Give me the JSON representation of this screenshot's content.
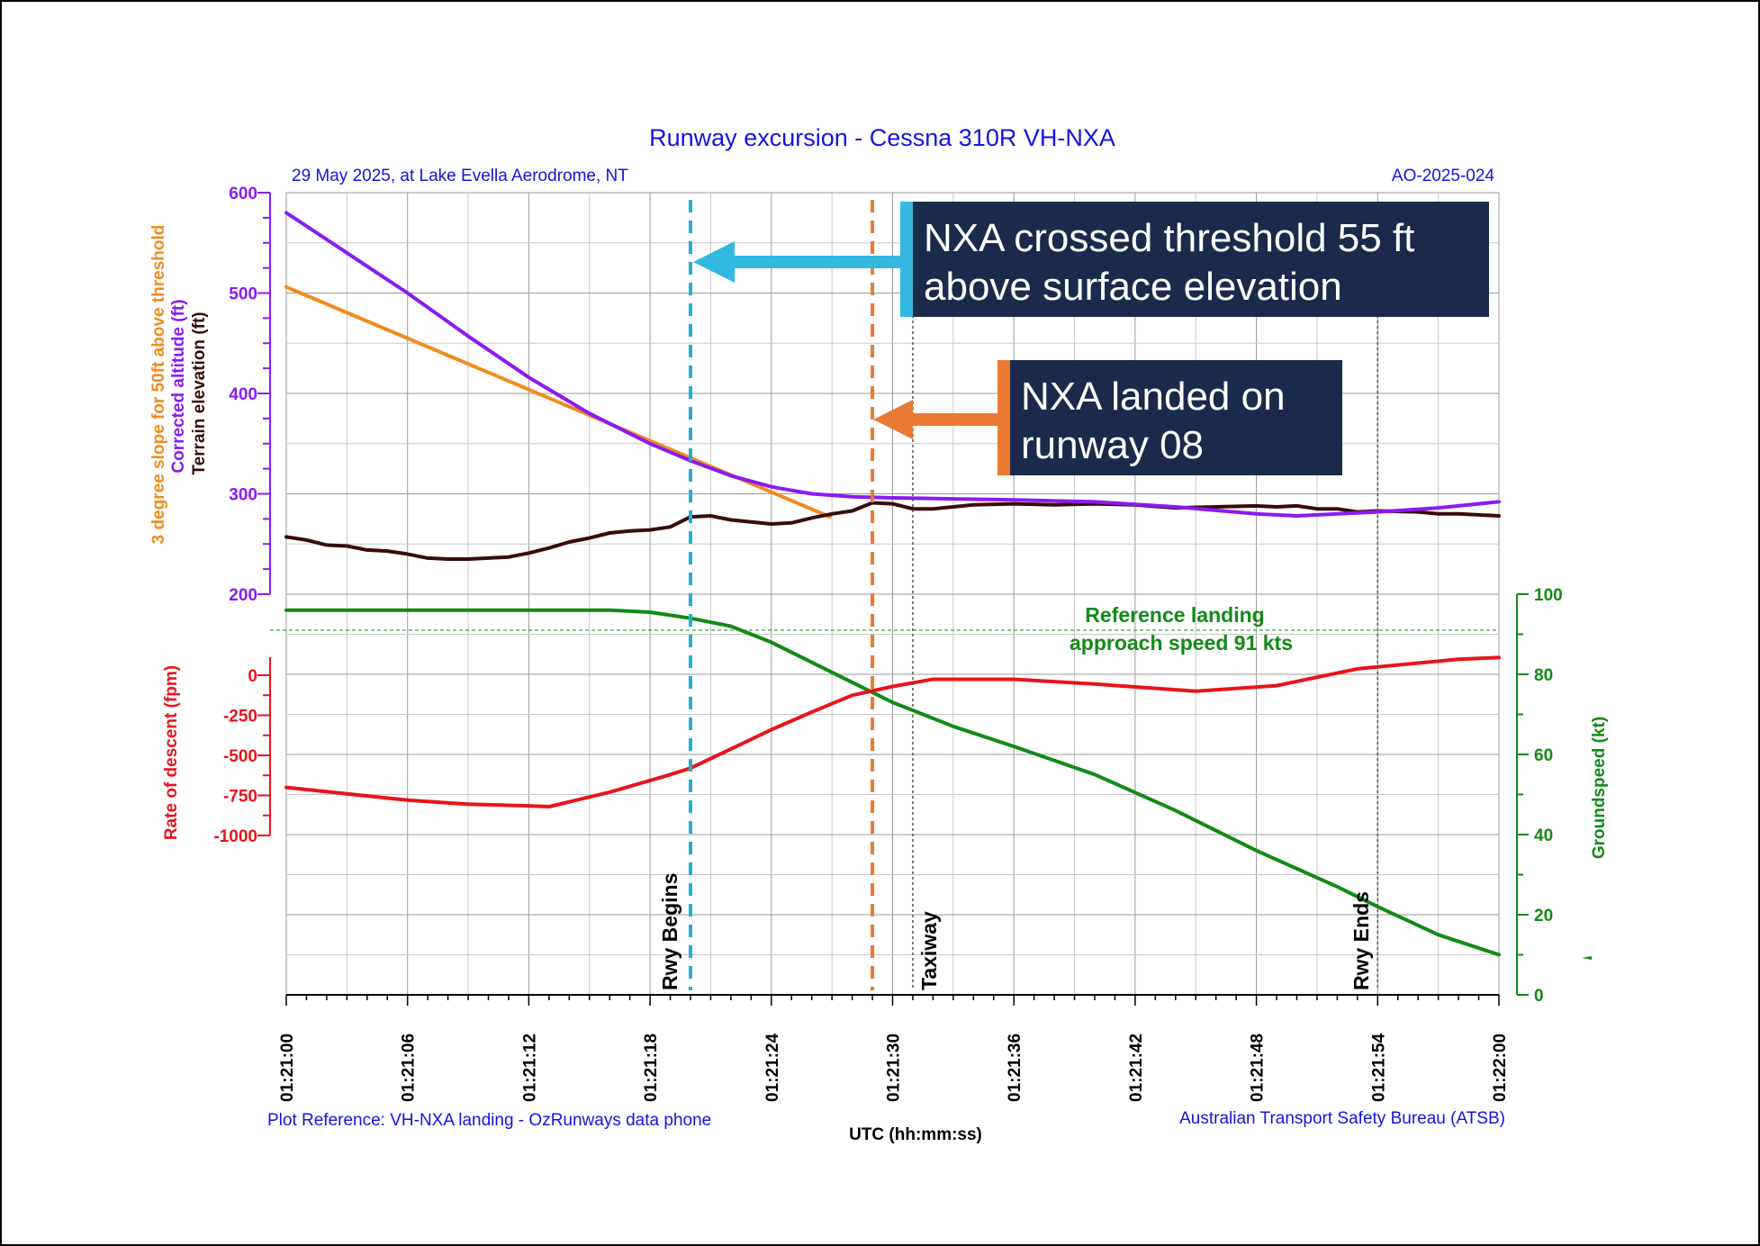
{
  "chart_data": {
    "type": "line",
    "title": "Runway excursion - Cessna 310R VH-NXA",
    "subtitle_left": "29 May 2025, at Lake Evella Aerodrome, NT",
    "subtitle_right": "AO-2025-024",
    "footer_left": "Plot Reference: VH-NXA landing - OzRunways data phone",
    "footer_right": "Australian Transport Safety Bureau (ATSB)",
    "xlabel": "UTC (hh:mm:ss)",
    "x_ticks": [
      "01:21:00",
      "01:21:06",
      "01:21:12",
      "01:21:18",
      "01:21:24",
      "01:21:30",
      "01:21:36",
      "01:21:42",
      "01:21:48",
      "01:21:54",
      "01:22:00"
    ],
    "xlim_seconds_after_0121": [
      0,
      60
    ],
    "upper_panel": {
      "ylabel_lines": [
        {
          "text": "3 degree slope for 50ft above threshold",
          "color": "#f28a1e"
        },
        {
          "text": "Corrected altitude (ft)",
          "color": "#8a1bf0"
        },
        {
          "text": "Terrain elevation (ft)",
          "color": "#3b0a0a"
        }
      ],
      "ylim": [
        200,
        600
      ],
      "y_ticks": [
        "200",
        "300",
        "400",
        "500",
        "600"
      ],
      "series": [
        {
          "name": "Corrected altitude (ft)",
          "color": "#8a1bf0",
          "x": [
            0,
            3,
            6,
            9,
            12,
            15,
            18,
            20,
            22,
            24,
            26,
            28,
            30,
            33,
            36,
            40,
            44,
            48,
            50,
            54,
            57,
            60
          ],
          "y": [
            580,
            540,
            500,
            457,
            416,
            380,
            350,
            333,
            318,
            307,
            300,
            297,
            296,
            295,
            294,
            292,
            287,
            280,
            278,
            282,
            286,
            292
          ]
        },
        {
          "name": "3 degree slope for 50ft above threshold",
          "color": "#f28a1e",
          "x": [
            0,
            26.9
          ],
          "y": [
            506,
            277
          ]
        },
        {
          "name": "Terrain elevation (ft)",
          "color": "#3b0a0a",
          "x": [
            0,
            1,
            2,
            3,
            4,
            5,
            6,
            7,
            8,
            9,
            10,
            11,
            12,
            13,
            14,
            15,
            16,
            17,
            18,
            19,
            20,
            21,
            22,
            23,
            24,
            25,
            26,
            27,
            28,
            29,
            30,
            31,
            32,
            33,
            34,
            36,
            38,
            40,
            42,
            44,
            46,
            48,
            49,
            50,
            51,
            52,
            53,
            54,
            56,
            57,
            58,
            60
          ],
          "y": [
            257,
            254,
            249,
            248,
            244,
            243,
            240,
            236,
            235,
            235,
            236,
            237,
            241,
            246,
            252,
            256,
            261,
            263,
            264,
            267,
            277,
            278,
            274,
            272,
            270,
            271,
            276,
            280,
            283,
            291,
            290,
            285,
            285,
            287,
            289,
            290,
            289,
            290,
            289,
            286,
            287,
            288,
            287,
            288,
            285,
            285,
            282,
            283,
            282,
            280,
            280,
            278
          ]
        }
      ]
    },
    "lower_panel": {
      "ylabel_left": "Rate of descent (fpm)",
      "ylabel_right": "Groundspeed (kt)",
      "ylim_left_fpm": [
        -1000,
        0
      ],
      "y_ticks_left": [
        "0",
        "-250",
        "-500",
        "-750",
        "-1000"
      ],
      "ylim_right_kt": [
        0,
        100
      ],
      "y_ticks_right": [
        "0",
        "20",
        "40",
        "60",
        "80",
        "100"
      ],
      "series": [
        {
          "name": "Rate of descent (fpm)",
          "axis": "left",
          "color": "#e8141b",
          "x": [
            0,
            3,
            6,
            9,
            12,
            13,
            16,
            19,
            20,
            22,
            24,
            26,
            28,
            30,
            32,
            36,
            40,
            45,
            49,
            53,
            58,
            60
          ],
          "y": [
            -700,
            -740,
            -780,
            -805,
            -815,
            -820,
            -730,
            -620,
            -580,
            -460,
            -340,
            -230,
            -125,
            -70,
            -25,
            -25,
            -55,
            -100,
            -65,
            40,
            100,
            110
          ]
        },
        {
          "name": "Groundspeed (kt)",
          "axis": "right",
          "color": "#128a16",
          "x": [
            0,
            6,
            12,
            16,
            18,
            20,
            22,
            24,
            26,
            28,
            30,
            31,
            33,
            36,
            40,
            44,
            48,
            52,
            54,
            57,
            60
          ],
          "y": [
            96,
            96,
            96,
            96,
            95.5,
            94,
            92,
            88,
            83,
            78,
            73,
            71,
            67,
            62,
            55,
            46,
            36,
            27,
            22,
            15,
            10
          ]
        }
      ],
      "reference_line": {
        "label_lines": [
          "Reference landing",
          "approach speed 91 kts"
        ],
        "value_kt": 91,
        "color": "#128a16"
      }
    },
    "markers": [
      {
        "label": "Rwy Begins",
        "x": 20,
        "style": "dashed",
        "color": "#1fb0d8"
      },
      {
        "label": "",
        "x": 29,
        "style": "dashed",
        "color": "#ea7a32"
      },
      {
        "label": "Taxiway",
        "x": 31,
        "style": "dotted",
        "color": "#555555"
      },
      {
        "label": "Rwy Ends",
        "x": 54,
        "style": "dotted",
        "color": "#555555"
      }
    ],
    "grid": true
  },
  "callouts": [
    {
      "text_lines": [
        "NXA crossed threshold 55 ft",
        "above surface elevation"
      ],
      "accent": "#33b8e0"
    },
    {
      "text_lines": [
        "NXA landed on",
        "runway 08"
      ],
      "accent": "#ea7a32"
    }
  ]
}
